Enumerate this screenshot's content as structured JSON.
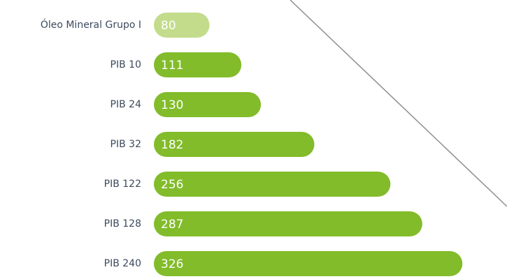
{
  "chart_data": {
    "type": "bar",
    "categories": [
      "Óleo Mineral Grupo I",
      "PIB 10",
      "PIB 24",
      "PIB 32",
      "PIB 122",
      "PIB 128",
      "PIB 240"
    ],
    "values": [
      80,
      111,
      130,
      182,
      256,
      287,
      326
    ],
    "colors": [
      "#c3dc8c",
      "#82bc2a",
      "#82bc2a",
      "#82bc2a",
      "#82bc2a",
      "#82bc2a",
      "#82bc2a"
    ]
  }
}
